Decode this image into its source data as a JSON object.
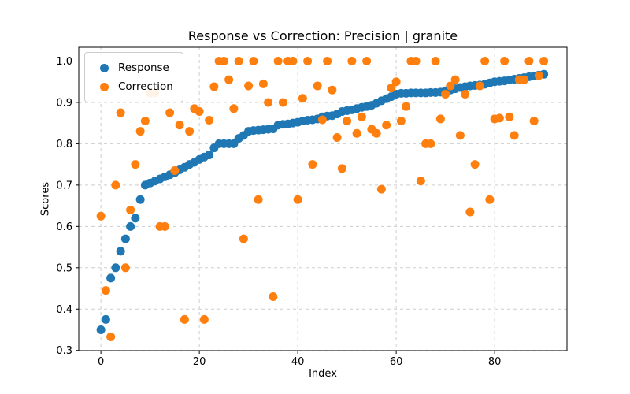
{
  "figure": {
    "title": "Response vs Correction: Precision | granite",
    "xlabel": "Index",
    "ylabel": "Scores"
  },
  "legend": {
    "items": [
      {
        "label": "Response",
        "color": "#1f77b4"
      },
      {
        "label": "Correction",
        "color": "#ff7f0e"
      }
    ]
  },
  "chart_data": {
    "type": "scatter",
    "title": "Response vs Correction: Precision | granite",
    "xlabel": "Index",
    "ylabel": "Scores",
    "grid": true,
    "legend_position": "upper left",
    "xlim": [
      -4.5,
      94.7
    ],
    "ylim": [
      0.2995,
      1.0333
    ],
    "xticks": [
      0,
      20,
      40,
      60,
      80
    ],
    "xticklabels": [
      "0",
      "20",
      "40",
      "60",
      "80"
    ],
    "yticks": [
      0.3,
      0.4,
      0.5,
      0.6,
      0.7,
      0.8,
      0.9,
      1.0
    ],
    "yticklabels": [
      "0.3",
      "0.4",
      "0.5",
      "0.6",
      "0.7",
      "0.8",
      "0.9",
      "1.0"
    ],
    "x": [
      0,
      1,
      2,
      3,
      4,
      5,
      6,
      7,
      8,
      9,
      10,
      11,
      12,
      13,
      14,
      15,
      16,
      17,
      18,
      19,
      20,
      21,
      22,
      23,
      24,
      25,
      26,
      27,
      28,
      29,
      30,
      31,
      32,
      33,
      34,
      35,
      36,
      37,
      38,
      39,
      40,
      41,
      42,
      43,
      44,
      45,
      46,
      47,
      48,
      49,
      50,
      51,
      52,
      53,
      54,
      55,
      56,
      57,
      58,
      59,
      60,
      61,
      62,
      63,
      64,
      65,
      66,
      67,
      68,
      69,
      70,
      71,
      72,
      73,
      74,
      75,
      76,
      77,
      78,
      79,
      80,
      81,
      82,
      83,
      84,
      85,
      86,
      87,
      88,
      89,
      90
    ],
    "series": [
      {
        "name": "Response",
        "color": "#1f77b4",
        "values": [
          0.35,
          0.375,
          0.475,
          0.5,
          0.54,
          0.57,
          0.6,
          0.62,
          0.665,
          0.7,
          0.705,
          0.71,
          0.715,
          0.72,
          0.725,
          0.73,
          0.737,
          0.743,
          0.75,
          0.755,
          0.762,
          0.768,
          0.773,
          0.79,
          0.8,
          0.8,
          0.8,
          0.8,
          0.813,
          0.82,
          0.83,
          0.832,
          0.833,
          0.834,
          0.835,
          0.836,
          0.845,
          0.847,
          0.848,
          0.85,
          0.852,
          0.855,
          0.857,
          0.858,
          0.86,
          0.865,
          0.867,
          0.868,
          0.872,
          0.878,
          0.88,
          0.882,
          0.885,
          0.888,
          0.89,
          0.893,
          0.898,
          0.904,
          0.909,
          0.914,
          0.92,
          0.922,
          0.922,
          0.923,
          0.923,
          0.923,
          0.923,
          0.924,
          0.924,
          0.925,
          0.928,
          0.93,
          0.933,
          0.936,
          0.938,
          0.94,
          0.941,
          0.942,
          0.944,
          0.947,
          0.95,
          0.951,
          0.952,
          0.954,
          0.956,
          0.958,
          0.96,
          0.962,
          0.964,
          0.966,
          0.968
        ]
      },
      {
        "name": "Correction",
        "color": "#ff7f0e",
        "values": [
          0.625,
          0.445,
          0.333,
          0.7,
          0.875,
          0.5,
          0.64,
          0.75,
          0.83,
          0.855,
          0.923,
          0.923,
          0.6,
          0.6,
          0.875,
          0.735,
          0.845,
          0.375,
          0.83,
          0.885,
          0.878,
          0.375,
          0.857,
          0.938,
          1.0,
          1.0,
          0.955,
          0.885,
          1.0,
          0.57,
          0.94,
          1.0,
          0.665,
          0.945,
          0.9,
          0.43,
          1.0,
          0.9,
          1.0,
          1.0,
          0.665,
          0.91,
          1.0,
          0.75,
          0.94,
          0.858,
          1.0,
          0.93,
          0.815,
          0.74,
          0.855,
          1.0,
          0.825,
          0.865,
          1.0,
          0.835,
          0.825,
          0.69,
          0.845,
          0.935,
          0.95,
          0.855,
          0.89,
          1.0,
          1.0,
          0.71,
          0.8,
          0.8,
          1.0,
          0.86,
          0.92,
          0.94,
          0.955,
          0.82,
          0.92,
          0.635,
          0.75,
          0.94,
          1.0,
          0.665,
          0.86,
          0.862,
          1.0,
          0.865,
          0.82,
          0.955,
          0.955,
          1.0,
          0.855,
          0.965,
          1.0
        ]
      }
    ]
  }
}
